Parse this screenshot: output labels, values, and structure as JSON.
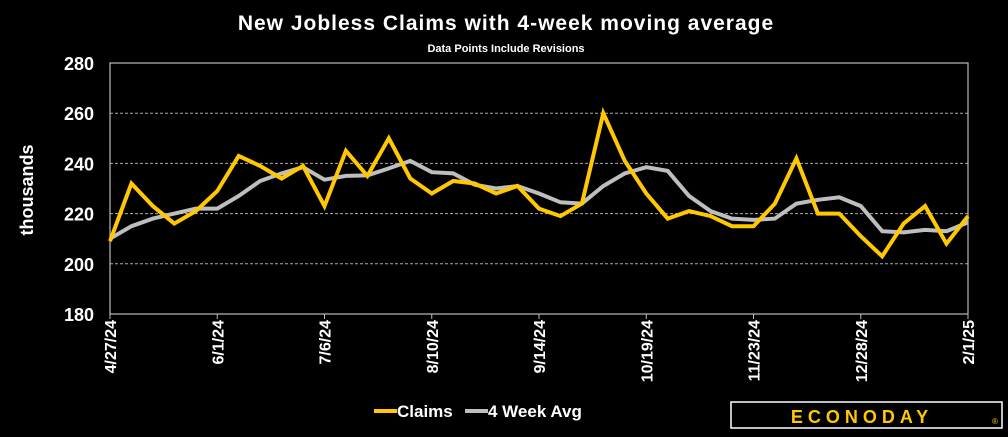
{
  "chart_data": {
    "type": "line",
    "title": "New Jobless Claims with 4-week moving average",
    "subtitle": "Data Points Include Revisions",
    "xlabel": "",
    "ylabel": "thousands",
    "ylim": [
      180,
      280
    ],
    "yticks": [
      180,
      200,
      220,
      240,
      260,
      280
    ],
    "grid": true,
    "legend": "bottom",
    "x": [
      "4/27/24",
      "5/4/24",
      "5/11/24",
      "5/18/24",
      "5/25/24",
      "6/1/24",
      "6/8/24",
      "6/15/24",
      "6/22/24",
      "6/29/24",
      "7/6/24",
      "7/13/24",
      "7/20/24",
      "7/27/24",
      "8/3/24",
      "8/10/24",
      "8/17/24",
      "8/24/24",
      "8/31/24",
      "9/7/24",
      "9/14/24",
      "9/21/24",
      "9/28/24",
      "10/5/24",
      "10/12/24",
      "10/19/24",
      "10/26/24",
      "11/2/24",
      "11/9/24",
      "11/16/24",
      "11/23/24",
      "11/30/24",
      "12/7/24",
      "12/14/24",
      "12/21/24",
      "12/28/24",
      "1/4/25",
      "1/11/25",
      "1/18/25",
      "1/25/25",
      "2/1/25"
    ],
    "xtick_labels": [
      "4/27/24",
      "6/1/24",
      "7/6/24",
      "8/10/24",
      "9/14/24",
      "10/19/24",
      "11/23/24",
      "12/28/24",
      "2/1/25"
    ],
    "series": [
      {
        "name": "Claims",
        "color": "#FFC800",
        "values": [
          209,
          232,
          223,
          216,
          221,
          229,
          243,
          239,
          234,
          239,
          223,
          245,
          235,
          250,
          234,
          228,
          233,
          232,
          228,
          231,
          222,
          219,
          224,
          260,
          241,
          228,
          218,
          221,
          219,
          215,
          215,
          224,
          242,
          220,
          220,
          211,
          203,
          216,
          223,
          208,
          219
        ]
      },
      {
        "name": "4 Week Avg",
        "color": "#BEBEBE",
        "values": [
          210,
          215,
          218,
          220,
          222,
          222,
          227,
          233,
          236,
          238.5,
          233.5,
          235,
          235.2,
          238,
          241,
          236.5,
          236,
          231.5,
          230,
          231,
          228,
          224.5,
          224,
          231,
          236,
          238.5,
          237,
          227,
          221,
          218,
          217.5,
          218,
          224,
          225.5,
          226.5,
          223,
          213,
          212.5,
          213.5,
          213,
          216.5
        ]
      }
    ]
  },
  "logo": {
    "text": "ECONODAY",
    "mark": "®"
  }
}
